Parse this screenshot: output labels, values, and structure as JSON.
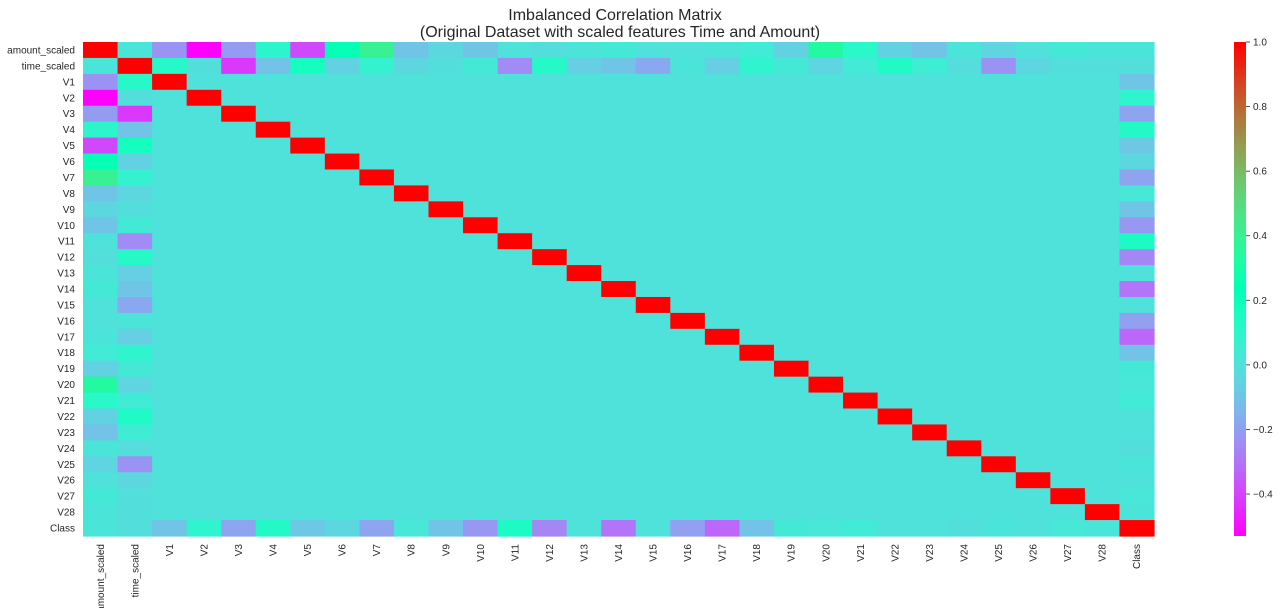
{
  "chart_data": {
    "type": "heatmap",
    "title": "Imbalanced Correlation Matrix",
    "subtitle": "(Original Dataset with scaled features Time and Amount)",
    "labels": [
      "amount_scaled",
      "time_scaled",
      "V1",
      "V2",
      "V3",
      "V4",
      "V5",
      "V6",
      "V7",
      "V8",
      "V9",
      "V10",
      "V11",
      "V12",
      "V13",
      "V14",
      "V15",
      "V16",
      "V17",
      "V18",
      "V19",
      "V20",
      "V21",
      "V22",
      "V23",
      "V24",
      "V25",
      "V26",
      "V27",
      "V28",
      "Class"
    ],
    "amount_row": [
      1.0,
      0.01,
      -0.23,
      -0.53,
      -0.21,
      0.1,
      -0.39,
      0.22,
      0.4,
      -0.1,
      -0.04,
      -0.1,
      0.0,
      -0.01,
      0.01,
      0.03,
      -0.0,
      -0.0,
      0.01,
      0.04,
      -0.06,
      0.34,
      0.11,
      -0.06,
      -0.11,
      0.01,
      -0.05,
      -0.0,
      0.03,
      0.01,
      0.01
    ],
    "time_row": [
      0.01,
      1.0,
      0.12,
      -0.01,
      -0.42,
      -0.11,
      0.17,
      -0.06,
      0.08,
      -0.04,
      -0.01,
      0.03,
      -0.25,
      0.12,
      -0.07,
      -0.1,
      -0.18,
      0.01,
      -0.07,
      0.09,
      0.03,
      -0.05,
      0.04,
      0.14,
      0.05,
      -0.02,
      -0.23,
      -0.04,
      -0.01,
      -0.01,
      -0.01
    ],
    "class_row": [
      0.01,
      -0.01,
      -0.1,
      0.09,
      -0.19,
      0.13,
      -0.09,
      -0.04,
      -0.19,
      0.02,
      -0.1,
      -0.22,
      0.15,
      -0.26,
      -0.0,
      -0.3,
      -0.0,
      -0.2,
      -0.33,
      -0.11,
      0.03,
      0.02,
      0.04,
      0.0,
      -0.0,
      -0.01,
      0.01,
      0.0,
      0.02,
      0.01,
      1.0
    ],
    "colorbar": {
      "min": -0.53,
      "max": 1.0,
      "ticks": [
        "1.0",
        "0.8",
        "0.6",
        "0.4",
        "0.2",
        "0.0",
        "−0.2",
        "−0.4"
      ],
      "tick_values": [
        1.0,
        0.8,
        0.6,
        0.4,
        0.2,
        0.0,
        -0.2,
        -0.4
      ]
    },
    "colormap": "rainbow"
  }
}
